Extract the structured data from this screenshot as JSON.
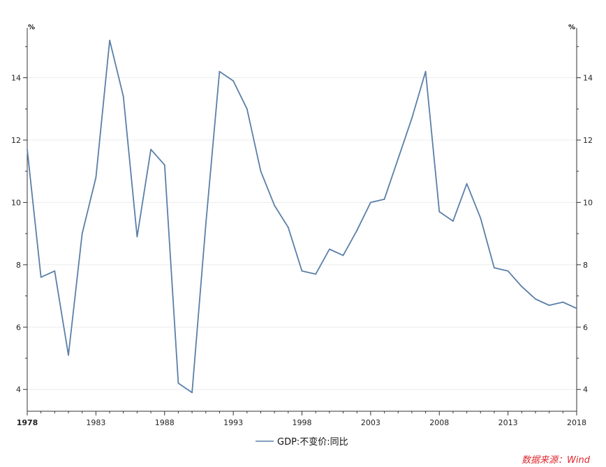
{
  "chart_data": {
    "type": "line",
    "title": "",
    "xlabel": "",
    "ylabel": "",
    "y_unit_left": "%",
    "y_unit_right": "%",
    "xlim": [
      1978,
      2018
    ],
    "ylim": [
      3.3,
      15.6
    ],
    "yticks": [
      4,
      6,
      8,
      10,
      12,
      14
    ],
    "xticks": [
      1978,
      1983,
      1988,
      1993,
      1998,
      2003,
      2008,
      2013,
      2018
    ],
    "grid": "horizontal-light",
    "legend_position": "bottom-center",
    "series": [
      {
        "name": "GDP:不变价:同比",
        "color": "#5a7fa8",
        "x": [
          1978,
          1979,
          1980,
          1981,
          1982,
          1983,
          1984,
          1985,
          1986,
          1987,
          1988,
          1989,
          1990,
          1991,
          1992,
          1993,
          1994,
          1995,
          1996,
          1997,
          1998,
          1999,
          2000,
          2001,
          2002,
          2003,
          2004,
          2005,
          2006,
          2007,
          2008,
          2009,
          2010,
          2011,
          2012,
          2013,
          2014,
          2015,
          2016,
          2017,
          2018
        ],
        "values": [
          11.7,
          7.6,
          7.8,
          5.1,
          9.0,
          10.8,
          15.2,
          13.4,
          8.9,
          11.7,
          11.2,
          4.2,
          3.9,
          9.3,
          14.2,
          13.9,
          13.0,
          11.0,
          9.9,
          9.2,
          7.8,
          7.7,
          8.5,
          8.3,
          9.1,
          10.0,
          10.1,
          11.4,
          12.7,
          14.2,
          9.7,
          9.4,
          10.6,
          9.5,
          7.9,
          7.8,
          7.3,
          6.9,
          6.7,
          6.8,
          6.6
        ]
      }
    ]
  },
  "source_note": "数据来源：Wind"
}
